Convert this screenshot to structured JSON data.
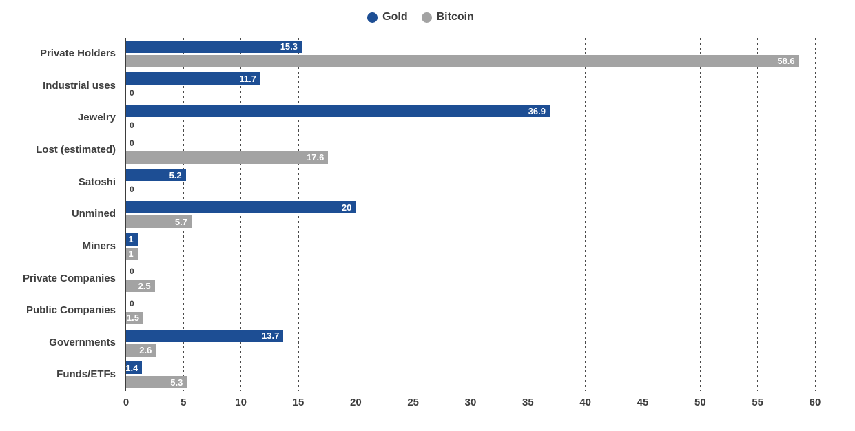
{
  "chart_data": {
    "type": "bar",
    "orientation": "horizontal",
    "title": "",
    "categories": [
      "Private Holders",
      "Industrial uses",
      "Jewelry",
      "Lost (estimated)",
      "Satoshi",
      "Unmined",
      "Miners",
      "Private Companies",
      "Public Companies",
      "Governments",
      "Funds/ETFs"
    ],
    "series": [
      {
        "name": "Gold",
        "color": "#1d4e94",
        "values": [
          15.3,
          11.7,
          36.9,
          0,
          5.2,
          20,
          1,
          0,
          0,
          13.7,
          1.4
        ]
      },
      {
        "name": "Bitcoin",
        "color": "#a3a3a3",
        "values": [
          58.6,
          0,
          0,
          17.6,
          0,
          5.7,
          1,
          2.5,
          1.5,
          2.6,
          5.3
        ]
      }
    ],
    "xlim": [
      0,
      60
    ],
    "xticks": [
      0,
      5,
      10,
      15,
      20,
      25,
      30,
      35,
      40,
      45,
      50,
      55,
      60
    ],
    "grid": "dashed-vertical",
    "legend_position": "top-center",
    "value_labels": "inside-end-white; zeros shown as dark '0' at axis",
    "colors": {
      "gold_bar": "#1d4e94",
      "bitcoin_bar": "#a3a3a3",
      "axis_text": "#3d3d3d",
      "category_text": "#3f3f3f",
      "gridline": "#4a4a4a",
      "bar_label_text": "#ffffff",
      "background": "#ffffff"
    }
  }
}
